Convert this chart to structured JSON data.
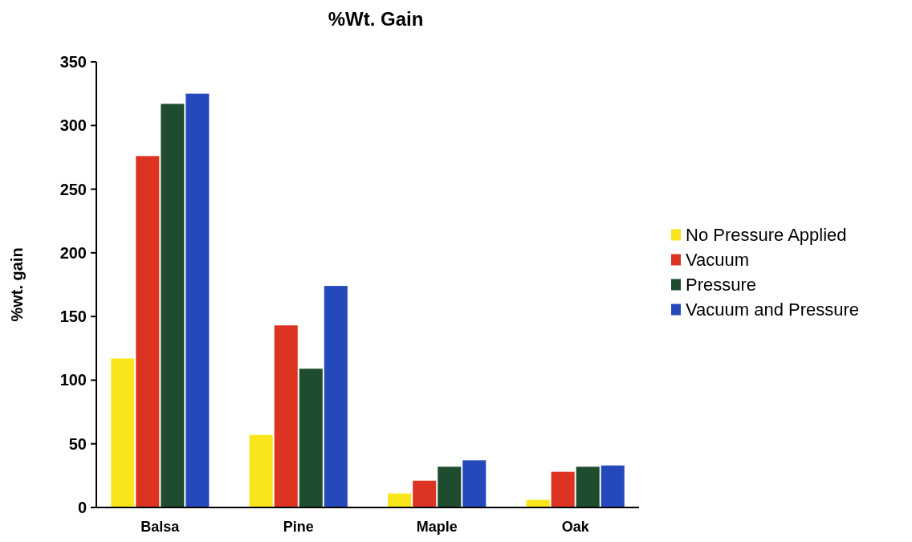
{
  "chart_data": {
    "type": "bar",
    "title": "%Wt. Gain",
    "ylabel": "%wt. gain",
    "categories": [
      "Balsa",
      "Pine",
      "Maple",
      "Oak"
    ],
    "series": [
      {
        "name": "No Pressure Applied",
        "color": "#f9e51c",
        "values": [
          117,
          57,
          11,
          6
        ]
      },
      {
        "name": "Vacuum",
        "color": "#dc3322",
        "values": [
          276,
          143,
          21,
          28
        ]
      },
      {
        "name": "Pressure",
        "color": "#1d4d2e",
        "values": [
          317,
          109,
          32,
          32
        ]
      },
      {
        "name": "Vacuum and Pressure",
        "color": "#2549bb",
        "values": [
          325,
          174,
          37,
          33
        ]
      }
    ],
    "ylim": [
      0,
      350
    ],
    "yticks": [
      0,
      50,
      100,
      150,
      200,
      250,
      300,
      350
    ],
    "legend": "right",
    "grid": false
  }
}
